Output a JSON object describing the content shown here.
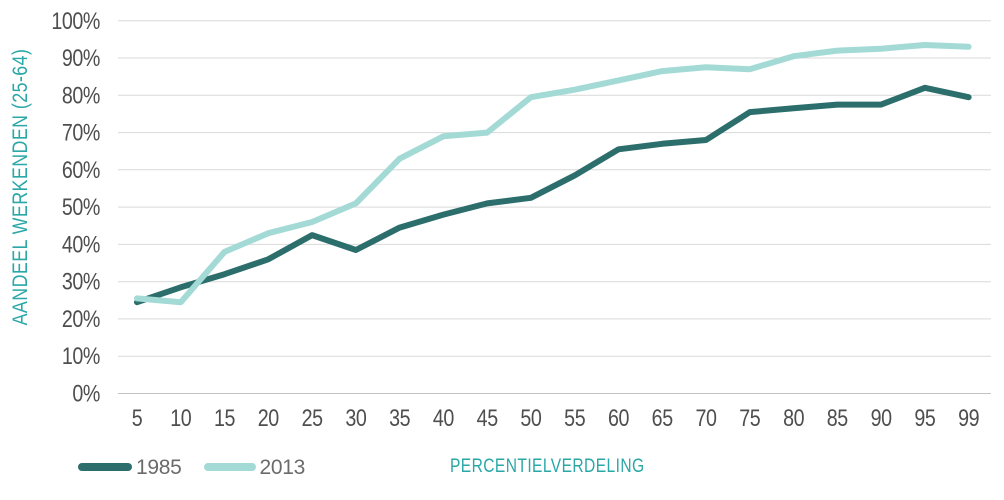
{
  "chart_data": {
    "type": "line",
    "title": "",
    "xlabel": "PERCENTIELVERDELING",
    "ylabel": "AANDEEL WERKENDEN (25-64)",
    "categories": [
      "5",
      "10",
      "15",
      "20",
      "25",
      "30",
      "35",
      "40",
      "45",
      "50",
      "55",
      "60",
      "65",
      "70",
      "75",
      "80",
      "85",
      "90",
      "95",
      "99"
    ],
    "y_ticks": [
      "0%",
      "10%",
      "20%",
      "30%",
      "40%",
      "50%",
      "60%",
      "70%",
      "80%",
      "90%",
      "100%"
    ],
    "ylim": [
      0,
      100
    ],
    "grid": "horizontal-only",
    "legend_position": "bottom-left",
    "series": [
      {
        "name": "1985",
        "color": "#2C6E6C",
        "values": [
          24.5,
          28.5,
          32,
          36,
          42.5,
          38.5,
          44.5,
          48,
          51,
          52.5,
          58.5,
          65.5,
          67,
          68,
          75.5,
          76.5,
          77.5,
          77.5,
          82,
          79.5
        ]
      },
      {
        "name": "2013",
        "color": "#A3DAD6",
        "values": [
          25.5,
          24.5,
          38,
          43,
          46,
          51,
          63,
          69,
          70,
          79.5,
          81.5,
          84,
          86.5,
          87.5,
          87,
          90.5,
          92,
          92.5,
          93.5,
          93
        ]
      }
    ]
  },
  "colors": {
    "background": "#FFFFFF",
    "gridline": "#D9D9D9",
    "axis_line": "#C2C2C2",
    "axis_text": "#4E4E4E",
    "title_teal": "#2BA7A7",
    "legend_text": "#6B6B6B"
  }
}
